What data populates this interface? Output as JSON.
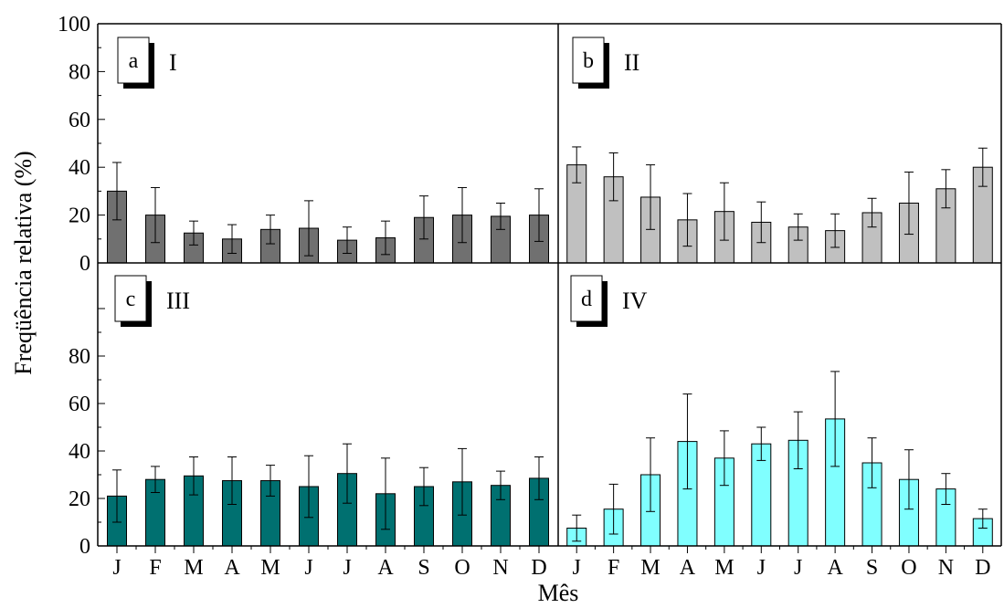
{
  "chart_data": {
    "type": "bar",
    "ylabel": "Freqüência relativa (%)",
    "xlabel": "Mês",
    "categories": [
      "J",
      "F",
      "M",
      "A",
      "M",
      "J",
      "J",
      "A",
      "S",
      "O",
      "N",
      "D"
    ],
    "yticks_top": [
      "0",
      "20",
      "40",
      "60",
      "80",
      "100"
    ],
    "yticks_bottom": [
      "0",
      "20",
      "40",
      "60",
      "80"
    ],
    "ylim": [
      0,
      100
    ],
    "grid": false,
    "panels": [
      {
        "letter": "a",
        "roman": "I",
        "color": "#707070",
        "values": [
          30,
          20,
          12.5,
          10,
          14,
          14.5,
          9.5,
          10.5,
          19,
          20,
          19.5,
          20
        ],
        "errors": [
          12,
          11.5,
          5,
          6,
          6,
          11.5,
          5.5,
          7,
          9,
          11.5,
          5.5,
          11
        ]
      },
      {
        "letter": "b",
        "roman": "II",
        "color": "#c0c0c0",
        "values": [
          41,
          36,
          27.5,
          18,
          21.5,
          17,
          15,
          13.5,
          21,
          25,
          31,
          40
        ],
        "errors": [
          7.5,
          10,
          13.5,
          11,
          12,
          8.5,
          5.5,
          7,
          6,
          13,
          8,
          8
        ]
      },
      {
        "letter": "c",
        "roman": "III",
        "color": "#007070",
        "values": [
          21,
          28,
          29.5,
          27.5,
          27.5,
          25,
          30.5,
          22,
          25,
          27,
          25.5,
          28.5
        ],
        "errors": [
          11,
          5.5,
          8,
          10,
          6.5,
          13,
          12.5,
          15,
          8,
          14,
          6,
          9
        ]
      },
      {
        "letter": "d",
        "roman": "IV",
        "color": "#80ffff",
        "values": [
          7.5,
          15.5,
          30,
          44,
          37,
          43,
          44.5,
          53.5,
          35,
          28,
          24,
          11.5
        ],
        "errors": [
          5.5,
          10.5,
          15.5,
          20,
          11.5,
          7,
          12,
          20,
          10.5,
          12.5,
          6.5,
          4
        ]
      }
    ]
  }
}
